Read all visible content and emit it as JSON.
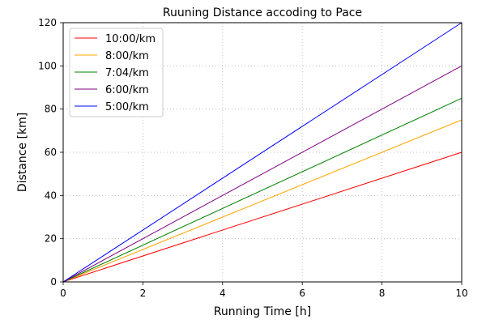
{
  "chart_data": {
    "type": "line",
    "title": "Ruuning Distance accoding to Pace",
    "xlabel": "Running Time [h]",
    "ylabel": "Distance [km]",
    "xlim": [
      0,
      10
    ],
    "ylim": [
      0,
      120
    ],
    "x_ticks": [
      0,
      2,
      4,
      6,
      8,
      10
    ],
    "y_ticks": [
      0,
      20,
      40,
      60,
      80,
      100,
      120
    ],
    "grid": true,
    "legend_position": "top-left",
    "x": [
      0,
      10
    ],
    "series": [
      {
        "name": "10:00/km",
        "color": "#ff0000",
        "values": [
          0,
          60
        ]
      },
      {
        "name": "8:00/km",
        "color": "#ffa500",
        "values": [
          0,
          75
        ]
      },
      {
        "name": "7:04/km",
        "color": "#008000",
        "values": [
          0,
          85
        ]
      },
      {
        "name": "6:00/km",
        "color": "#800080",
        "values": [
          0,
          100
        ]
      },
      {
        "name": "5:00/km",
        "color": "#0000ff",
        "values": [
          0,
          120
        ]
      }
    ]
  }
}
